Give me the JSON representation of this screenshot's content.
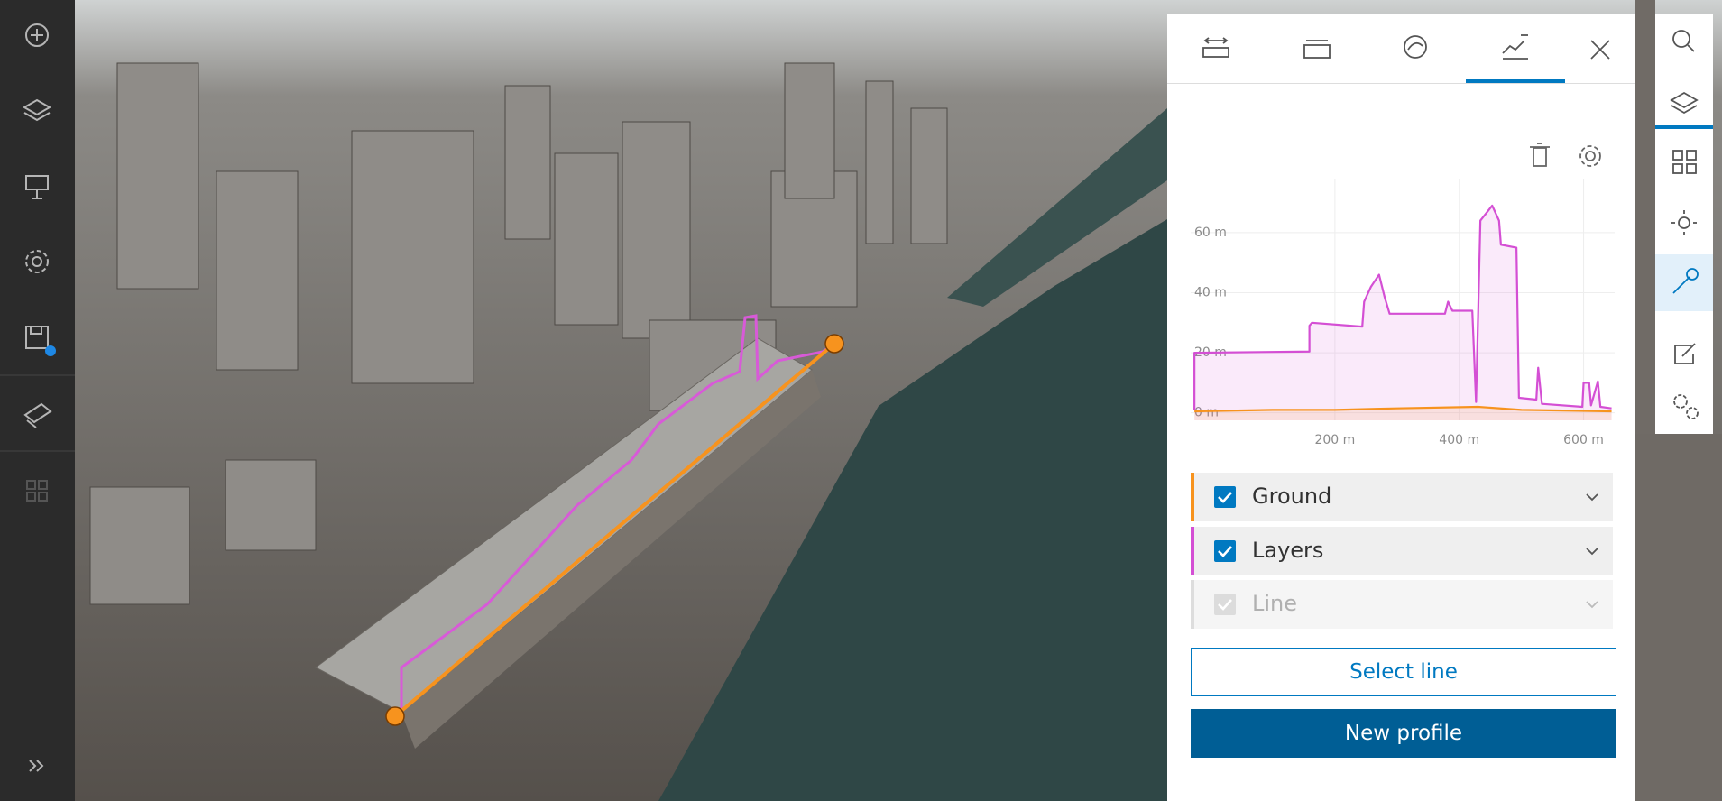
{
  "profile_chart": {
    "type": "line",
    "series": [
      {
        "name": "Ground",
        "color": "#f7931e",
        "checked": true,
        "x": [
          -26,
          100,
          200,
          300,
          430,
          500,
          645
        ],
        "values": [
          0.5,
          1,
          1,
          1.5,
          2,
          1,
          0.5
        ]
      },
      {
        "name": "Layers",
        "color": "#d44fd4",
        "checked": true,
        "x": [
          -26,
          -26,
          159,
          159,
          163,
          244,
          247,
          258,
          271,
          280,
          288,
          377,
          382,
          389,
          421,
          427,
          434,
          453,
          464,
          467,
          492,
          496,
          524,
          527,
          533,
          598,
          600,
          609,
          612,
          623,
          627,
          645
        ],
        "values": [
          1,
          20,
          20.4,
          29,
          30,
          28.7,
          37,
          42,
          46,
          38.5,
          33,
          33,
          37,
          34,
          34,
          3.6,
          64,
          69,
          64,
          56,
          55,
          5,
          4.4,
          15,
          3,
          2,
          10,
          10,
          2.5,
          10.5,
          2,
          1.5
        ]
      }
    ],
    "xlim": [
      -32,
      650
    ],
    "xticks": [
      {
        "value": 200,
        "label": "200 m"
      },
      {
        "value": 400,
        "label": "400 m"
      },
      {
        "value": 600,
        "label": "600 m"
      }
    ],
    "ylim": [
      -2.5,
      78
    ],
    "yticks": [
      {
        "value": 0,
        "label": "0 m"
      },
      {
        "value": 20,
        "label": "20 m"
      },
      {
        "value": 40,
        "label": "40 m"
      },
      {
        "value": 60,
        "label": "60 m"
      }
    ],
    "grid": true
  },
  "other_items": [
    {
      "name": "Line",
      "checked": true,
      "enabled": false
    }
  ],
  "buttons": {
    "select_line": "Select line",
    "new_profile": "New profile"
  }
}
